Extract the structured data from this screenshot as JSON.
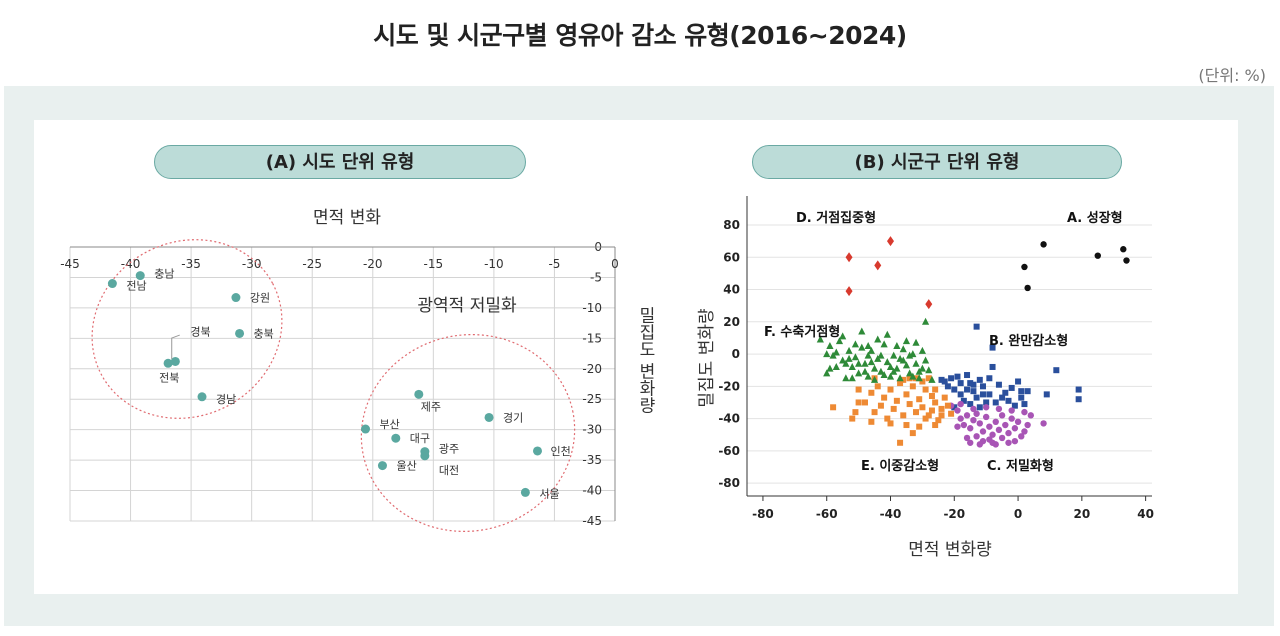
{
  "title": "시도 및 시군구별 영유아 감소 유형(2016~2024)",
  "unit": "(단위: %)",
  "chart_data": [
    {
      "type": "scatter",
      "panel_title": "(A) 시도 단위 유형",
      "xlabel": "면적 변화",
      "ylabel": "밀집도 변화량",
      "xlim": [
        -45,
        0
      ],
      "ylim": [
        -45,
        0
      ],
      "xticks": [
        -45,
        -40,
        -35,
        -30,
        -25,
        -20,
        -15,
        -10,
        -5,
        0
      ],
      "yticks": [
        0,
        -5,
        -10,
        -15,
        -20,
        -25,
        -30,
        -35,
        -40,
        -45
      ],
      "grid": true,
      "point_color": "#5aa8a0",
      "annotation": "광역적 저밀화",
      "points": [
        {
          "name": "충남",
          "x": -39.2,
          "y": -4.7
        },
        {
          "name": "전남",
          "x": -41.5,
          "y": -6.0
        },
        {
          "name": "강원",
          "x": -31.3,
          "y": -8.3
        },
        {
          "name": "충북",
          "x": -31.0,
          "y": -14.2
        },
        {
          "name": "경북",
          "x": -36.3,
          "y": -18.8
        },
        {
          "name": "전북",
          "x": -36.9,
          "y": -19.1
        },
        {
          "name": "경남",
          "x": -34.1,
          "y": -24.6
        },
        {
          "name": "제주",
          "x": -16.2,
          "y": -24.2
        },
        {
          "name": "경기",
          "x": -10.4,
          "y": -28.0
        },
        {
          "name": "부산",
          "x": -20.6,
          "y": -29.9
        },
        {
          "name": "대구",
          "x": -18.1,
          "y": -31.4
        },
        {
          "name": "광주",
          "x": -15.7,
          "y": -33.6
        },
        {
          "name": "대전",
          "x": -15.7,
          "y": -34.3
        },
        {
          "name": "인천",
          "x": -6.4,
          "y": -33.5
        },
        {
          "name": "울산",
          "x": -19.2,
          "y": -35.9
        },
        {
          "name": "서울",
          "x": -7.4,
          "y": -40.3
        }
      ]
    },
    {
      "type": "scatter",
      "panel_title": "(B) 시군구 단위 유형",
      "xlabel": "면적 변화량",
      "ylabel": "밀집도 변화량",
      "xlim": [
        -85,
        42
      ],
      "ylim": [
        -88,
        98
      ],
      "xticks": [
        -80,
        -60,
        -40,
        -20,
        0,
        20,
        40
      ],
      "yticks": [
        80,
        60,
        40,
        20,
        0,
        -20,
        -40,
        -60,
        -80
      ],
      "grid": true,
      "series": [
        {
          "name": "A. 성장형",
          "marker": "circle",
          "color": "#111111",
          "points": [
            [
              2,
              54
            ],
            [
              8,
              68
            ],
            [
              3,
              41
            ],
            [
              25,
              61
            ],
            [
              33,
              65
            ],
            [
              34,
              58
            ]
          ]
        },
        {
          "name": "B. 완만감소형",
          "marker": "square",
          "color": "#2a4f9c",
          "points": [
            [
              -23,
              -17
            ],
            [
              -21,
              -15
            ],
            [
              -19,
              -14
            ],
            [
              -18,
              -18
            ],
            [
              -16,
              -13
            ],
            [
              -15,
              -18
            ],
            [
              -14,
              -19
            ],
            [
              -12,
              -16
            ],
            [
              -11,
              -20
            ],
            [
              -9,
              -15
            ],
            [
              -8,
              -8
            ],
            [
              -6,
              -19
            ],
            [
              -4,
              -24
            ],
            [
              -2,
              -21
            ],
            [
              0,
              -17
            ],
            [
              1,
              -27
            ],
            [
              2,
              -31
            ],
            [
              3,
              -23
            ],
            [
              -13,
              17
            ],
            [
              -8,
              4
            ],
            [
              -20,
              -22
            ],
            [
              -18,
              -25
            ],
            [
              -17,
              -29
            ],
            [
              -15,
              -31
            ],
            [
              -13,
              -27
            ],
            [
              -12,
              -33
            ],
            [
              -10,
              -30
            ],
            [
              -9,
              -25
            ],
            [
              -7,
              -30
            ],
            [
              -5,
              -27
            ],
            [
              -3,
              -29
            ],
            [
              -1,
              -32
            ],
            [
              1,
              -23
            ],
            [
              -16,
              -22
            ],
            [
              -22,
              -20
            ],
            [
              -14,
              -23
            ],
            [
              -11,
              -25
            ],
            [
              12,
              -10
            ],
            [
              19,
              -22
            ],
            [
              19,
              -28
            ],
            [
              9,
              -25
            ],
            [
              -24,
              -16
            ],
            [
              -20,
              -33
            ]
          ]
        },
        {
          "name": "C. 저밀화형",
          "marker": "circle",
          "color": "#a855b5",
          "points": [
            [
              -21,
              -32
            ],
            [
              -19,
              -35
            ],
            [
              -18,
              -40
            ],
            [
              -17,
              -44
            ],
            [
              -16,
              -38
            ],
            [
              -15,
              -46
            ],
            [
              -14,
              -41
            ],
            [
              -13,
              -37
            ],
            [
              -12,
              -43
            ],
            [
              -11,
              -48
            ],
            [
              -10,
              -39
            ],
            [
              -9,
              -45
            ],
            [
              -8,
              -50
            ],
            [
              -7,
              -42
            ],
            [
              -6,
              -47
            ],
            [
              -5,
              -38
            ],
            [
              -4,
              -44
            ],
            [
              -3,
              -49
            ],
            [
              -2,
              -40
            ],
            [
              -1,
              -46
            ],
            [
              0,
              -42
            ],
            [
              1,
              -51
            ],
            [
              2,
              -36
            ],
            [
              3,
              -44
            ],
            [
              4,
              -38
            ],
            [
              8,
              -43
            ],
            [
              -16,
              -52
            ],
            [
              -13,
              -51
            ],
            [
              -11,
              -54
            ],
            [
              -9,
              -53
            ],
            [
              -7,
              -56
            ],
            [
              -5,
              -52
            ],
            [
              -3,
              -55
            ],
            [
              -19,
              -45
            ],
            [
              -14,
              -34
            ],
            [
              -10,
              -33
            ],
            [
              -6,
              -34
            ],
            [
              -2,
              -35
            ],
            [
              -18,
              -31
            ],
            [
              -15,
              -55
            ],
            [
              -12,
              -56
            ],
            [
              -8,
              -55
            ],
            [
              -1,
              -54
            ],
            [
              2,
              -48
            ]
          ]
        },
        {
          "name": "D. 거점집중형",
          "marker": "diamond",
          "color": "#d83a2e",
          "points": [
            [
              -53,
              60
            ],
            [
              -44,
              55
            ],
            [
              -40,
              70
            ],
            [
              -53,
              39
            ],
            [
              -28,
              31
            ]
          ]
        },
        {
          "name": "E. 이중감소형",
          "marker": "square",
          "color": "#ee8a34",
          "points": [
            [
              -48,
              -30
            ],
            [
              -46,
              -24
            ],
            [
              -45,
              -36
            ],
            [
              -44,
              -20
            ],
            [
              -43,
              -32
            ],
            [
              -42,
              -27
            ],
            [
              -41,
              -40
            ],
            [
              -40,
              -22
            ],
            [
              -39,
              -34
            ],
            [
              -38,
              -29
            ],
            [
              -37,
              -18
            ],
            [
              -36,
              -38
            ],
            [
              -35,
              -25
            ],
            [
              -34,
              -31
            ],
            [
              -33,
              -20
            ],
            [
              -32,
              -36
            ],
            [
              -31,
              -28
            ],
            [
              -30,
              -33
            ],
            [
              -29,
              -22
            ],
            [
              -28,
              -38
            ],
            [
              -27,
              -26
            ],
            [
              -26,
              -30
            ],
            [
              -25,
              -41
            ],
            [
              -24,
              -34
            ],
            [
              -23,
              -27
            ],
            [
              -22,
              -32
            ],
            [
              -21,
              -37
            ],
            [
              -30,
              -17
            ],
            [
              -28,
              -15
            ],
            [
              -32,
              -15
            ],
            [
              -35,
              -44
            ],
            [
              -37,
              -55
            ],
            [
              -33,
              -49
            ],
            [
              -46,
              -42
            ],
            [
              -50,
              -22
            ],
            [
              -51,
              -36
            ],
            [
              -52,
              -40
            ],
            [
              -58,
              -33
            ],
            [
              -45,
              -15
            ],
            [
              -40,
              -43
            ],
            [
              -26,
              -44
            ],
            [
              -27,
              -35
            ],
            [
              -29,
              -40
            ],
            [
              -31,
              -45
            ],
            [
              -36,
              -16
            ],
            [
              -34,
              -15
            ],
            [
              -24,
              -38
            ],
            [
              -26,
              -22
            ],
            [
              -50,
              -30
            ]
          ]
        },
        {
          "name": "F. 수축거점형",
          "marker": "triangle",
          "color": "#2e8a38",
          "points": [
            [
              -60,
              -12
            ],
            [
              -59,
              5
            ],
            [
              -58,
              -1
            ],
            [
              -57,
              -8
            ],
            [
              -56,
              8
            ],
            [
              -55,
              -4
            ],
            [
              -54,
              -15
            ],
            [
              -53,
              2
            ],
            [
              -52,
              -8
            ],
            [
              -51,
              -2
            ],
            [
              -50,
              -12
            ],
            [
              -49,
              4
            ],
            [
              -48,
              -6
            ],
            [
              -47,
              -14
            ],
            [
              -46,
              2
            ],
            [
              -45,
              -9
            ],
            [
              -44,
              -3
            ],
            [
              -43,
              -11
            ],
            [
              -42,
              6
            ],
            [
              -41,
              -5
            ],
            [
              -40,
              -14
            ],
            [
              -39,
              -1
            ],
            [
              -38,
              -9
            ],
            [
              -37,
              -15
            ],
            [
              -36,
              3
            ],
            [
              -35,
              -7
            ],
            [
              -34,
              -12
            ],
            [
              -33,
              0
            ],
            [
              -32,
              -6
            ],
            [
              -31,
              -11
            ],
            [
              -30,
              2
            ],
            [
              -29,
              -4
            ],
            [
              -28,
              -10
            ],
            [
              -27,
              -16
            ],
            [
              -62,
              9
            ],
            [
              -59,
              -9
            ],
            [
              -55,
              11
            ],
            [
              -52,
              -15
            ],
            [
              -49,
              14
            ],
            [
              -47,
              5
            ],
            [
              -44,
              9
            ],
            [
              -41,
              12
            ],
            [
              -38,
              5
            ],
            [
              -35,
              8
            ],
            [
              -32,
              7
            ],
            [
              -29,
              20
            ],
            [
              -50,
              -6
            ],
            [
              -45,
              -16
            ],
            [
              -40,
              -8
            ],
            [
              -36,
              -4
            ],
            [
              -33,
              -14
            ],
            [
              -30,
              -9
            ],
            [
              -57,
              1
            ],
            [
              -54,
              -6
            ],
            [
              -51,
              6
            ],
            [
              -48,
              -11
            ],
            [
              -46,
              -5
            ],
            [
              -43,
              -1
            ],
            [
              -42,
              -13
            ],
            [
              -39,
              -11
            ],
            [
              -37,
              -3
            ],
            [
              -34,
              -1
            ],
            [
              -31,
              -15
            ],
            [
              -60,
              0
            ],
            [
              -53,
              -3
            ],
            [
              -47,
              -1
            ]
          ]
        }
      ]
    }
  ]
}
